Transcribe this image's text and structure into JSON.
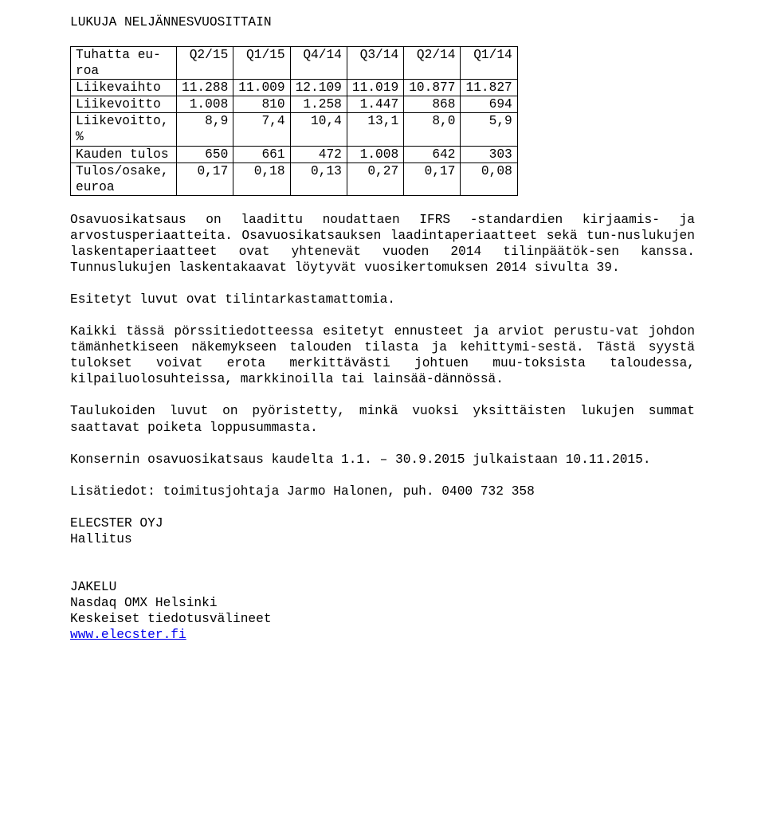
{
  "title": "LUKUJA NELJÄNNESVUOSITTAIN",
  "table": {
    "row_labels": [
      "Tuhatta eu-roa",
      "Liikevaihto",
      "Liikevoitto",
      "Liikevoitto, %",
      "Kauden tulos",
      "Tulos/osake, euroa"
    ],
    "headers": [
      "Q2/15",
      "Q1/15",
      "Q4/14",
      "Q3/14",
      "Q2/14",
      "Q1/14"
    ],
    "rows": [
      [
        "11.288",
        "11.009",
        "12.109",
        "11.019",
        "10.877",
        "11.827"
      ],
      [
        "1.008",
        "810",
        "1.258",
        "1.447",
        "868",
        "694"
      ],
      [
        "8,9",
        "7,4",
        "10,4",
        "13,1",
        "8,0",
        "5,9"
      ],
      [
        "650",
        "661",
        "472",
        "1.008",
        "642",
        "303"
      ],
      [
        "0,17",
        "0,18",
        "0,13",
        "0,27",
        "0,17",
        "0,08"
      ]
    ],
    "border_color": "#000000",
    "background_color": "#ffffff",
    "font_size_pt": 12
  },
  "paragraphs": {
    "p1": "Osavuosikatsaus on laadittu noudattaen IFRS -standardien kirjaamis- ja arvostusperiaatteita. Osavuosikatsauksen laadintaperiaatteet sekä tun-nuslukujen laskentaperiaatteet ovat yhtenevät vuoden 2014 tilinpäätök-sen kanssa. Tunnuslukujen laskentakaavat löytyvät vuosikertomuksen 2014 sivulta 39.",
    "p2": "Esitetyt luvut ovat tilintarkastamattomia.",
    "p3": "Kaikki tässä pörssitiedotteessa esitetyt ennusteet ja arviot perustu-vat johdon tämänhetkiseen näkemykseen talouden tilasta ja kehittymi-sestä. Tästä syystä tulokset voivat erota merkittävästi johtuen muu-toksista taloudessa, kilpailuolosuhteissa, markkinoilla tai lainsää-dännössä.",
    "p4": "Taulukoiden luvut on pyöristetty, minkä vuoksi yksittäisten lukujen summat saattavat poiketa loppusummasta.",
    "p5": "Konsernin osavuosikatsaus kaudelta 1.1. – 30.9.2015 julkaistaan 10.11.2015.",
    "p6": "Lisätiedot: toimitusjohtaja Jarmo Halonen, puh. 0400 732 358"
  },
  "signature": {
    "line1": "ELECSTER OYJ",
    "line2": "Hallitus"
  },
  "distribution": {
    "heading": "JAKELU",
    "line1": "Nasdaq OMX Helsinki",
    "line2": "Keskeiset tiedotusvälineet",
    "link_text": "www.elecster.fi"
  },
  "style": {
    "font_family": "Courier New",
    "text_color": "#000000",
    "link_color": "#0000ee",
    "background": "#ffffff"
  }
}
